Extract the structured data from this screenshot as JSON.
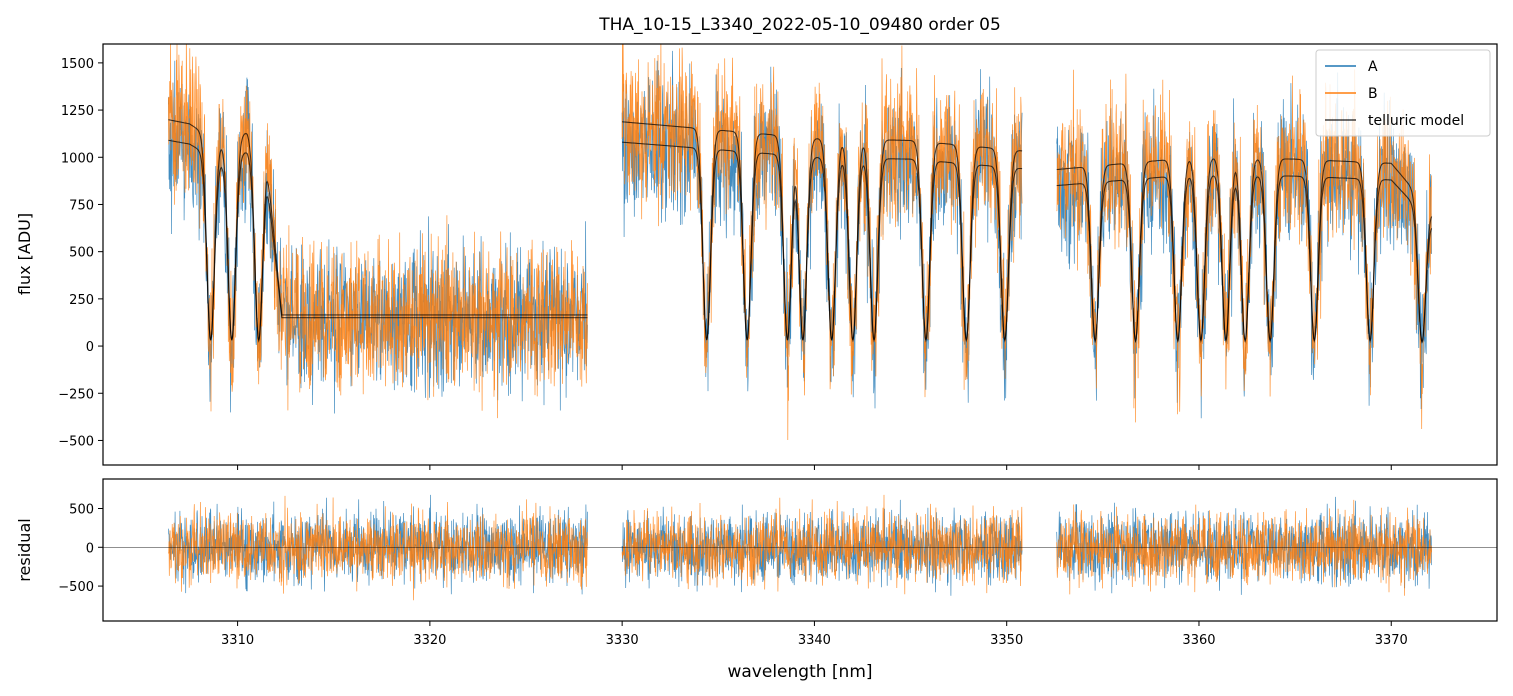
{
  "chart_data": {
    "type": "line",
    "title": "THA_10-15_L3340_2022-05-10_09480  order 05",
    "xlabel": "wavelength [nm]",
    "xlim": [
      3303,
      3375.5
    ],
    "x_ticks": [
      3310,
      3320,
      3330,
      3340,
      3350,
      3360,
      3370
    ],
    "x_tick_labels": [
      "3310",
      "3320",
      "3330",
      "3340",
      "3350",
      "3360",
      "3370"
    ],
    "segments": [
      [
        3306.4,
        3328.2
      ],
      [
        3330.0,
        3350.8
      ],
      [
        3352.6,
        3372.1
      ]
    ],
    "colors": {
      "A": "#1f77b4",
      "B": "#ff7f0e",
      "model": "#000000",
      "zero": "#000000"
    },
    "panels": [
      {
        "id": "flux",
        "ylabel": "flux [ADU]",
        "ylim": [
          -630,
          1600
        ],
        "y_ticks": [
          -500,
          -250,
          0,
          250,
          500,
          750,
          1000,
          1250,
          1500
        ],
        "y_tick_labels": [
          "−500",
          "−250",
          "0",
          "250",
          "500",
          "750",
          "1000",
          "1250",
          "1500"
        ],
        "legend_location": "upper right",
        "series": [
          {
            "name": "A",
            "color": "#1f77b4"
          },
          {
            "name": "B",
            "color": "#ff7f0e"
          },
          {
            "name": "telluric model",
            "color": "#000000"
          }
        ]
      },
      {
        "id": "residual",
        "ylabel": "residual",
        "ylim": [
          -950,
          880
        ],
        "y_ticks": [
          -500,
          0,
          500
        ],
        "y_tick_labels": [
          "−500",
          "0",
          "500"
        ],
        "zero_line": true,
        "series": [
          {
            "color": "#1f77b4"
          },
          {
            "color": "#ff7f0e"
          }
        ]
      }
    ],
    "continuum_model": [
      {
        "x": [
          3306.4,
          3307.5,
          3309.0,
          3310.5,
          3311.5,
          3312.3,
          3328.2
        ],
        "y": [
          1090,
          1070,
          980,
          1030,
          900,
          150,
          150
        ]
      },
      {
        "x": [
          3330.0,
          3335.0,
          3340.0,
          3345.0,
          3350.8
        ],
        "y": [
          1080,
          1040,
          1000,
          990,
          940
        ]
      },
      {
        "x": [
          3352.6,
          3355.0,
          3360.0,
          3365.0,
          3370.0,
          3372.1
        ],
        "y": [
          850,
          870,
          910,
          900,
          880,
          650
        ]
      }
    ],
    "absorption_lines_nm": [
      3308.6,
      3309.7,
      3311.1,
      3334.4,
      3336.5,
      3338.6,
      3339.4,
      3340.9,
      3342.0,
      3343.1,
      3345.8,
      3347.9,
      3349.9,
      3354.6,
      3356.7,
      3358.9,
      3360.1,
      3361.4,
      3362.4,
      3363.7,
      3366.0,
      3368.9,
      3371.6
    ]
  }
}
